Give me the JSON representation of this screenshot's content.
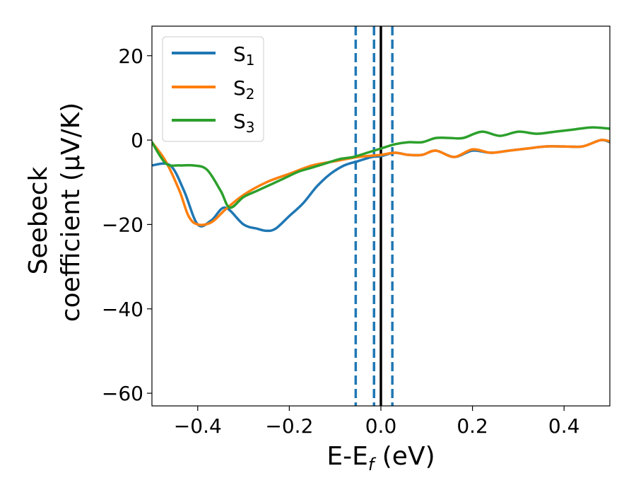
{
  "chart_data": {
    "type": "line",
    "xlabel": "E-E_f (eV)",
    "xlabel_parts": {
      "main": "E-E",
      "sub": "f",
      "tail": " (eV)"
    },
    "ylabel": "Seebeck coefficient (μV/K)",
    "ylabel_lines": [
      "Seebeck",
      "coefficient  (μV/K)"
    ],
    "xlim": [
      -0.5,
      0.5
    ],
    "ylim": [
      -63,
      27
    ],
    "xticks": [
      -0.4,
      -0.2,
      0.0,
      0.2,
      0.4
    ],
    "xtick_labels": [
      "−0.4",
      "−0.2",
      "0.0",
      "0.2",
      "0.4"
    ],
    "yticks": [
      20,
      0,
      -20,
      -40,
      -60
    ],
    "ytick_labels": [
      "20",
      "0",
      "−20",
      "−40",
      "−60"
    ],
    "grid": false,
    "legend_position": "top-left",
    "vlines": [
      {
        "x": -0.055,
        "style": "dashed",
        "color": "#1f77b4"
      },
      {
        "x": -0.015,
        "style": "dashed",
        "color": "#1f77b4"
      },
      {
        "x": 0.025,
        "style": "dashed",
        "color": "#1f77b4"
      },
      {
        "x": 0.0,
        "style": "solid",
        "color": "#000000"
      }
    ],
    "series": [
      {
        "name": "S_1",
        "label_main": "S",
        "label_sub": "1",
        "color": "#1f77b4",
        "x": [
          -0.5,
          -0.46,
          -0.43,
          -0.4,
          -0.37,
          -0.34,
          -0.3,
          -0.27,
          -0.25,
          -0.23,
          -0.2,
          -0.17,
          -0.14,
          -0.11,
          -0.08,
          -0.05,
          -0.02,
          0.0,
          0.03,
          0.06,
          0.09,
          0.12,
          0.16,
          0.2,
          0.24,
          0.28,
          0.32,
          0.36,
          0.4,
          0.44,
          0.48,
          0.5
        ],
        "y": [
          -6,
          -6,
          -12,
          -20,
          -19,
          -16,
          -20,
          -21,
          -21.5,
          -21,
          -18,
          -15,
          -11,
          -8,
          -6,
          -5,
          -4,
          -3.8,
          -3,
          -3.5,
          -3.5,
          -2.5,
          -4,
          -2.5,
          -3,
          -2.5,
          -2,
          -1.5,
          -1.5,
          -1.5,
          0,
          -0.5
        ]
      },
      {
        "name": "S_2",
        "label_main": "S",
        "label_sub": "2",
        "color": "#ff7f0e",
        "x": [
          -0.5,
          -0.47,
          -0.44,
          -0.42,
          -0.4,
          -0.37,
          -0.34,
          -0.3,
          -0.25,
          -0.2,
          -0.15,
          -0.1,
          -0.05,
          0.0,
          0.03,
          0.06,
          0.09,
          0.12,
          0.16,
          0.2,
          0.24,
          0.28,
          0.32,
          0.36,
          0.4,
          0.44,
          0.48,
          0.5
        ],
        "y": [
          -0.5,
          -5,
          -12,
          -18,
          -20,
          -19.5,
          -16.5,
          -13,
          -10,
          -8,
          -6,
          -5,
          -4,
          -3.5,
          -3,
          -3.5,
          -3.5,
          -2.5,
          -4,
          -2.2,
          -3,
          -2.5,
          -2,
          -1.5,
          -1.5,
          -1.5,
          0,
          -0.3
        ]
      },
      {
        "name": "S_3",
        "label_main": "S",
        "label_sub": "3",
        "color": "#2ca02c",
        "x": [
          -0.5,
          -0.47,
          -0.44,
          -0.41,
          -0.38,
          -0.35,
          -0.33,
          -0.3,
          -0.27,
          -0.24,
          -0.21,
          -0.18,
          -0.15,
          -0.12,
          -0.09,
          -0.06,
          -0.03,
          0.0,
          0.03,
          0.06,
          0.09,
          0.12,
          0.15,
          0.18,
          0.22,
          0.26,
          0.3,
          0.34,
          0.38,
          0.42,
          0.46,
          0.5
        ],
        "y": [
          -0.5,
          -5.5,
          -6,
          -6,
          -7,
          -12,
          -16,
          -13.5,
          -12,
          -10.5,
          -9,
          -7.5,
          -6.5,
          -5.5,
          -4.5,
          -4,
          -3,
          -2,
          -1,
          -0.5,
          -0.5,
          0.5,
          0.5,
          0.5,
          2,
          1,
          2,
          1.5,
          2,
          2.5,
          3,
          2.7
        ]
      }
    ]
  }
}
